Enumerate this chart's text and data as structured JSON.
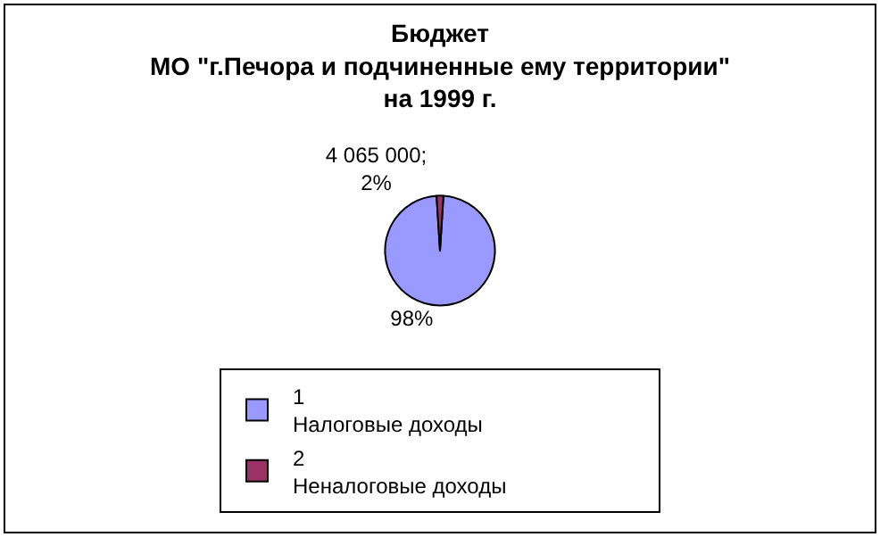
{
  "chart_data": {
    "type": "pie",
    "title": "Бюджет\nМО \"г.Печора и подчиненные ему территории\"\nна 1999 г.",
    "categories": [
      "1\nНалоговые доходы",
      "2\nНеналоговые доходы"
    ],
    "values": [
      98,
      2
    ],
    "value_labels": [
      "98%",
      "4 065 000;\n2%"
    ],
    "colors": [
      "#9999ff",
      "#993366"
    ],
    "legend": "bottom"
  }
}
